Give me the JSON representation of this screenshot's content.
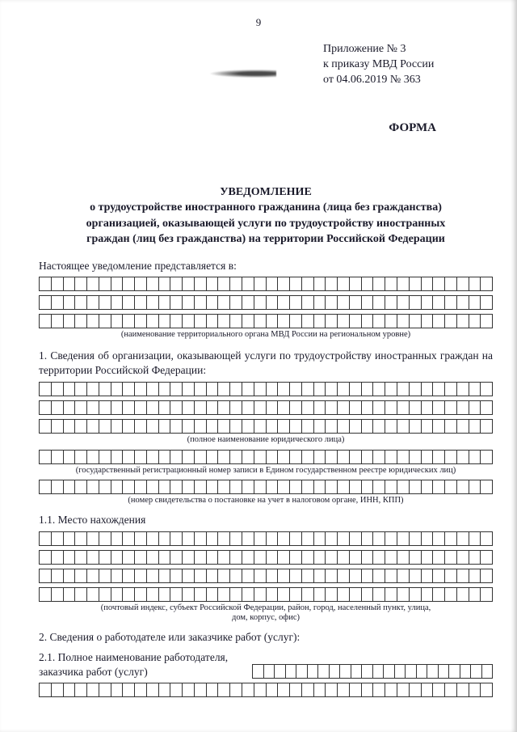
{
  "pageNumber": "9",
  "headerRight": {
    "line1": "Приложение № 3",
    "line2": "к приказу МВД России",
    "line3": "от 04.06.2019 № 363"
  },
  "forma": "ФОРМА",
  "title": {
    "main": "УВЕДОМЛЕНИЕ",
    "l1": "о трудоустройстве иностранного гражданина (лица без гражданства)",
    "l2": "организацией, оказывающей услуги по трудоустройству иностранных",
    "l3": "граждан (лиц без гражданства) на территории Российской Федерации"
  },
  "intro": "Настоящее уведомление представляется в:",
  "caption1": "(наименование территориального органа МВД России на региональном уровне)",
  "section1": "1. Сведения об организации, оказывающей услуги по трудоустройству иностранных граждан на территории Российской Федерации:",
  "caption2": "(полное наименование юридического лица)",
  "caption3": "(государственный регистрационный номер записи в Едином государственном реестре юридических лиц)",
  "caption4": "(номер свидетельства о постановке на учет в налоговом органе, ИНН, КПП)",
  "section1_1": "1.1. Место нахождения",
  "caption5a": "(почтовый индекс, субъект Российской Федерации, район, город, населенный пункт, улица,",
  "caption5b": "дом, корпус, офис)",
  "section2": "2.   Сведения о работодателе или заказчике работ (услуг):",
  "section2_1a": "2.1. Полное наименование работодателя,",
  "section2_1b": "заказчика работ (услуг)",
  "style": {
    "cellsPerRow": 38,
    "cellsPerHalfRow": 22,
    "colors": {
      "page": "#ffffff",
      "text": "#1a1a2a",
      "border": "#333333",
      "bg": "#e8e8e8"
    },
    "font": "Times New Roman",
    "fontSizes": {
      "body": 13.5,
      "caption": 10.5,
      "title": 14
    },
    "cellHeightPx": 18
  }
}
